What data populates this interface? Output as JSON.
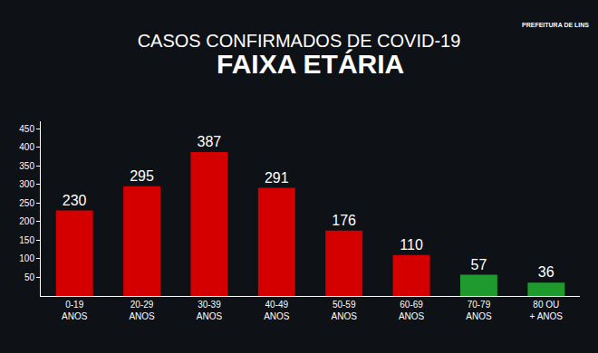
{
  "chart_data": {
    "type": "bar",
    "title": "CASOS CONFIRMADOS DE COVID-19",
    "subtitle": "FAIXA ETÁRIA",
    "annotations": [
      "PREFEITURA DE LINS"
    ],
    "categories": [
      "0-19 ANOS",
      "20-29 ANOS",
      "30-39 ANOS",
      "40-49 ANOS",
      "50-59 ANOS",
      "60-69 ANOS",
      "70-79 ANOS",
      "80 OU + ANOS"
    ],
    "values": [
      230,
      295,
      387,
      291,
      176,
      110,
      57,
      36
    ],
    "colors": [
      "#d40000",
      "#d40000",
      "#d40000",
      "#d40000",
      "#d40000",
      "#d40000",
      "#1f9a2e",
      "#1f9a2e"
    ],
    "ylim": [
      0,
      470
    ],
    "yticks": [
      50,
      100,
      150,
      200,
      250,
      300,
      350,
      400,
      450
    ],
    "grid": false,
    "data_labels": true
  }
}
